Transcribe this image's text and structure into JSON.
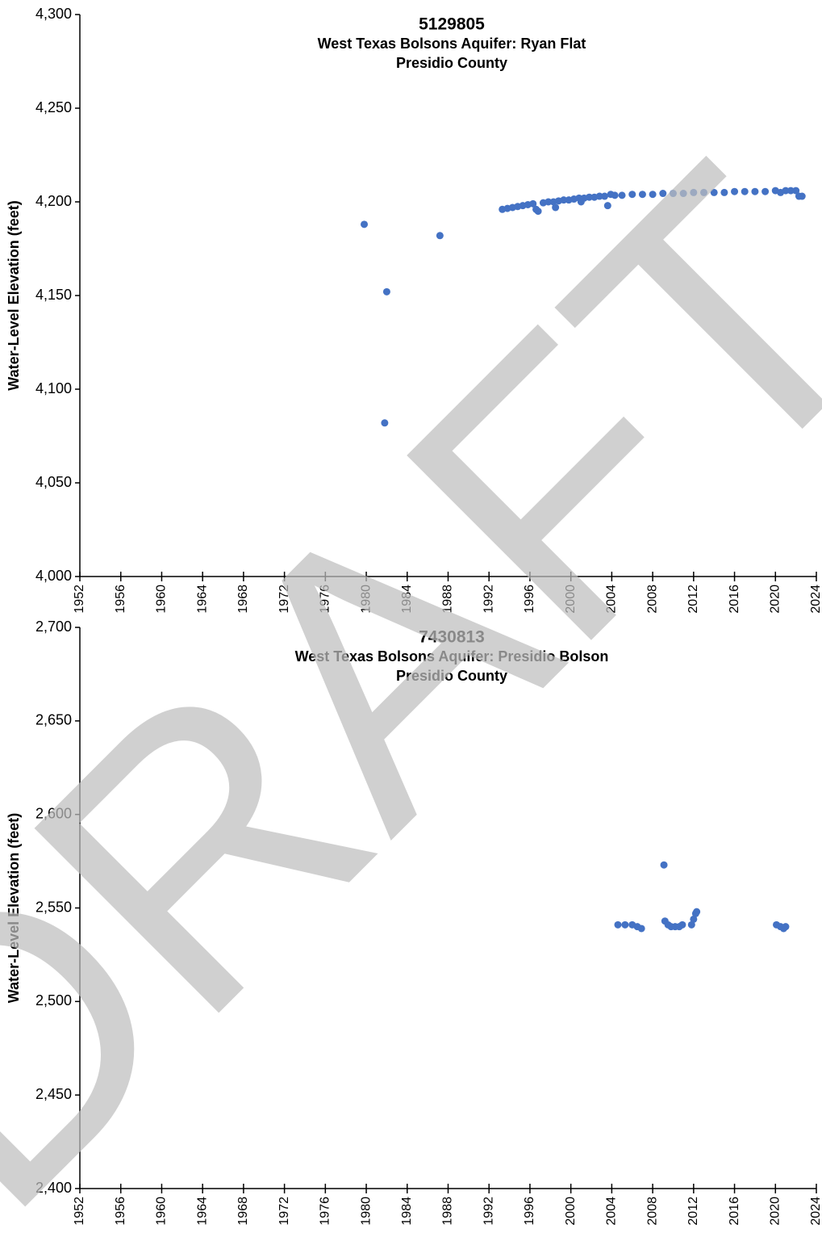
{
  "chart_data": [
    {
      "type": "scatter",
      "title": "5129805",
      "subtitle": [
        "West Texas Bolsons Aquifer: Ryan Flat",
        "Presidio County"
      ],
      "y_label": "Water-Level Elevation (feet)",
      "color": "#4472c4",
      "x": [
        1979.8,
        1981.8,
        1982.0,
        1987.2,
        1993.3,
        1993.8,
        1994.3,
        1994.8,
        1995.3,
        1995.8,
        1996.3,
        1996.6,
        1996.8,
        1997.3,
        1997.8,
        1998.3,
        1998.5,
        1998.8,
        1999.3,
        1999.8,
        2000.3,
        2000.8,
        2001.0,
        2001.3,
        2001.8,
        2002.3,
        2002.8,
        2003.3,
        2003.6,
        2003.9,
        2004.3,
        2005,
        2006,
        2007,
        2008,
        2009,
        2010,
        2011,
        2012,
        2013,
        2014,
        2015,
        2016,
        2017,
        2018,
        2019,
        2020,
        2020.5,
        2021,
        2021.5,
        2022,
        2022.3,
        2022.6
      ],
      "values": [
        4188,
        4082,
        4152,
        4182,
        4196,
        4196.5,
        4197,
        4197.5,
        4198,
        4198.5,
        4199,
        4196,
        4195,
        4199.5,
        4200,
        4200,
        4197,
        4200.5,
        4201,
        4201,
        4201.5,
        4202,
        4200,
        4202,
        4202.5,
        4202.5,
        4203,
        4203,
        4198,
        4204,
        4203.5,
        4203.5,
        4204,
        4204,
        4204,
        4204.5,
        4204.5,
        4204.5,
        4205,
        4205,
        4205,
        4205,
        4205.5,
        4205.5,
        4205.5,
        4205.5,
        4206,
        4205,
        4206,
        4206,
        4206,
        4203,
        4203
      ],
      "xlim": [
        1952,
        2024
      ],
      "xticks": [
        1952,
        1956,
        1960,
        1964,
        1968,
        1972,
        1976,
        1980,
        1984,
        1988,
        1992,
        1996,
        2000,
        2004,
        2008,
        2012,
        2016,
        2020,
        2024
      ],
      "ylim": [
        4000,
        4300
      ],
      "yticks": [
        {
          "value": 4000,
          "label": "4,000"
        },
        {
          "value": 4050,
          "label": "4,050"
        },
        {
          "value": 4100,
          "label": "4,100"
        },
        {
          "value": 4150,
          "label": "4,150"
        },
        {
          "value": 4200,
          "label": "4,200"
        },
        {
          "value": 4250,
          "label": "4,250"
        },
        {
          "value": 4300,
          "label": "4,300"
        }
      ]
    },
    {
      "type": "scatter",
      "title": "7430813",
      "subtitle": [
        "West Texas Bolsons Aquifer: Presidio Bolson",
        "Presidio County"
      ],
      "y_label": "Water-Level Elevation (feet)",
      "color": "#4472c4",
      "x": [
        2004.6,
        2005.3,
        2006.0,
        2006.5,
        2006.9,
        2009.1,
        2009.2,
        2009.5,
        2009.8,
        2010.2,
        2010.6,
        2010.9,
        2011.8,
        2012.0,
        2012.2,
        2012.3,
        2020.1,
        2020.5,
        2020.8,
        2021.0
      ],
      "values": [
        2541,
        2541,
        2541,
        2540,
        2539,
        2573,
        2543,
        2541,
        2540,
        2540,
        2540,
        2541,
        2541,
        2544,
        2547,
        2548,
        2541,
        2540,
        2539,
        2540
      ],
      "xlim": [
        1952,
        2024
      ],
      "xticks": [
        1952,
        1956,
        1960,
        1964,
        1968,
        1972,
        1976,
        1980,
        1984,
        1988,
        1992,
        1996,
        2000,
        2004,
        2008,
        2012,
        2016,
        2020,
        2024
      ],
      "ylim": [
        2400,
        2700
      ],
      "yticks": [
        {
          "value": 2400,
          "label": "2,400"
        },
        {
          "value": 2450,
          "label": "2,450"
        },
        {
          "value": 2500,
          "label": "2,500"
        },
        {
          "value": 2550,
          "label": "2,550"
        },
        {
          "value": 2600,
          "label": "2,600"
        },
        {
          "value": 2650,
          "label": "2,650"
        },
        {
          "value": 2700,
          "label": "2,700"
        }
      ]
    }
  ],
  "watermark": "DRAFT"
}
